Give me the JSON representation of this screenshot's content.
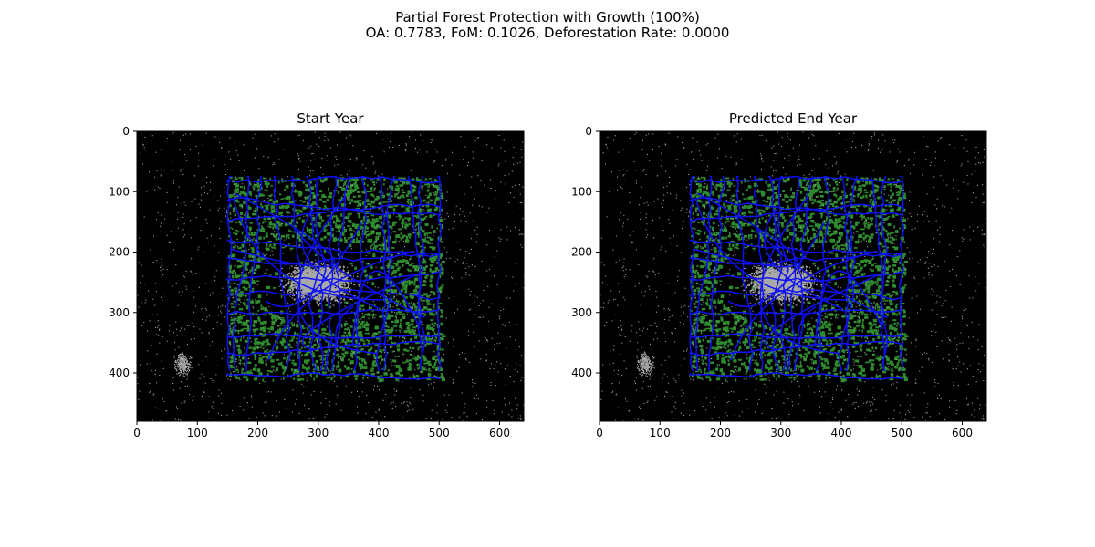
{
  "figure": {
    "suptitle_line1": "Partial Forest Protection with Growth (100%)",
    "suptitle_line2": "OA: 0.7783, FoM: 0.1026, Deforestation Rate: 0.0000"
  },
  "colors": {
    "background": "#000000",
    "urban": "#a9a9a9",
    "forest": "#2e8b2e",
    "roads": "#1010ff"
  },
  "chart_data": [
    {
      "type": "heatmap",
      "title": "Start Year",
      "xlim": [
        0,
        640
      ],
      "ylim": [
        480,
        0
      ],
      "xticks": [
        0,
        100,
        200,
        300,
        400,
        500,
        600
      ],
      "yticks": [
        0,
        100,
        200,
        300,
        400
      ],
      "grid": false,
      "regions": {
        "study_area_x": [
          150,
          505
        ],
        "study_area_y": [
          75,
          410
        ],
        "urban_core_center": [
          300,
          250
        ]
      }
    },
    {
      "type": "heatmap",
      "title": "Predicted End Year",
      "xlim": [
        0,
        640
      ],
      "ylim": [
        480,
        0
      ],
      "xticks": [
        0,
        100,
        200,
        300,
        400,
        500,
        600
      ],
      "yticks": [
        0,
        100,
        200,
        300,
        400
      ],
      "grid": false,
      "regions": {
        "study_area_x": [
          150,
          505
        ],
        "study_area_y": [
          75,
          410
        ],
        "urban_core_center": [
          300,
          250
        ]
      }
    }
  ]
}
